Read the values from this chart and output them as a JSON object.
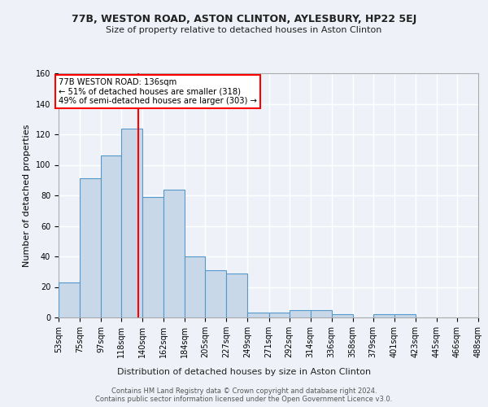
{
  "title1": "77B, WESTON ROAD, ASTON CLINTON, AYLESBURY, HP22 5EJ",
  "title2": "Size of property relative to detached houses in Aston Clinton",
  "xlabel": "Distribution of detached houses by size in Aston Clinton",
  "ylabel": "Number of detached properties",
  "footer1": "Contains HM Land Registry data © Crown copyright and database right 2024.",
  "footer2": "Contains public sector information licensed under the Open Government Licence v3.0.",
  "bins": [
    53,
    75,
    97,
    118,
    140,
    162,
    184,
    205,
    227,
    249,
    271,
    292,
    314,
    336,
    358,
    379,
    401,
    423,
    445,
    466,
    488
  ],
  "values": [
    23,
    91,
    106,
    124,
    79,
    84,
    40,
    31,
    29,
    3,
    3,
    5,
    5,
    2,
    0,
    2,
    2,
    0,
    0,
    0
  ],
  "bar_color": "#c8d8e8",
  "bar_edge_color": "#5599cc",
  "property_line_x": 136,
  "annotation_line1": "77B WESTON ROAD: 136sqm",
  "annotation_line2": "← 51% of detached houses are smaller (318)",
  "annotation_line3": "49% of semi-detached houses are larger (303) →",
  "annotation_box_color": "white",
  "annotation_box_edge": "red",
  "vline_color": "red",
  "ylim": [
    0,
    160
  ],
  "yticks": [
    0,
    20,
    40,
    60,
    80,
    100,
    120,
    140,
    160
  ],
  "bg_color": "#eef2f8",
  "grid_color": "white",
  "title1_fontsize": 9,
  "title2_fontsize": 8,
  "ylabel_fontsize": 8,
  "xlabel_fontsize": 8,
  "tick_fontsize": 7,
  "footer_fontsize": 6
}
